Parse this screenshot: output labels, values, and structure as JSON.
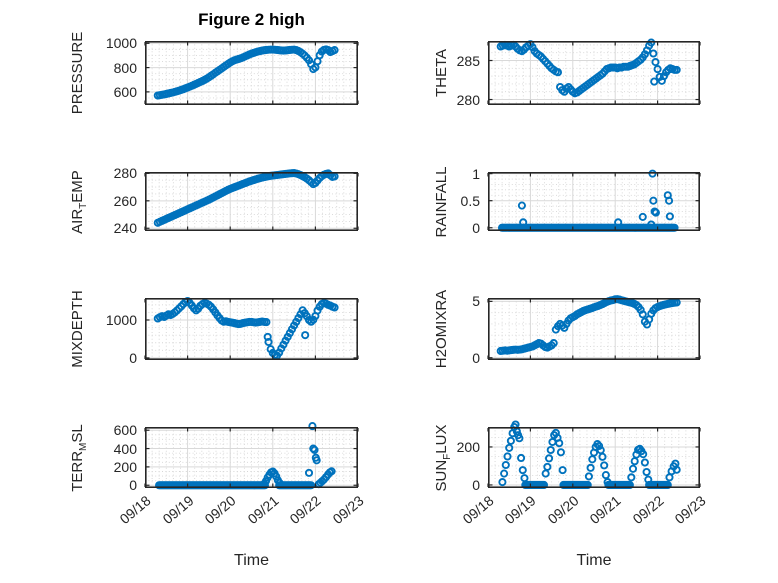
{
  "figure": {
    "title": "Figure 2 high",
    "xlabel": "Time",
    "colors": {
      "marker": "#0072bd",
      "frame": "#262626",
      "grid": "#d9d9d9",
      "minor_grid": "#d6d6d6",
      "text": "#262626",
      "background": "#ffffff"
    }
  },
  "x_axis": {
    "lim": [
      0,
      5
    ],
    "unit": "days since 09/18 00:00",
    "tick_values": [
      0,
      1,
      2,
      3,
      4,
      5
    ],
    "tick_labels": [
      "09/18",
      "09/19",
      "09/20",
      "09/21",
      "09/22",
      "09/23"
    ],
    "minor_divisions_per_day": 6,
    "label": "Time"
  },
  "chart_data": [
    {
      "type": "scatter",
      "name": "PRESSURE",
      "row": 0,
      "col": 0,
      "ylabel": {
        "pre": "PRESSURE",
        "sub": "",
        "post": ""
      },
      "ylim": [
        492,
        1019
      ],
      "yticks": [
        600,
        800,
        1000
      ],
      "ytick_labels": [
        "600",
        "800",
        "1000"
      ],
      "minor_y_step": 50,
      "t0": 0.3,
      "dt": 0.05,
      "values": [
        570,
        573,
        576,
        579,
        583,
        587,
        591,
        595,
        600,
        605,
        610,
        616,
        622,
        629,
        636,
        643,
        650,
        658,
        666,
        674,
        682,
        690,
        699,
        709,
        720,
        732,
        744,
        757,
        769,
        781,
        793,
        806,
        818,
        830,
        842,
        852,
        860,
        866,
        871,
        877,
        884,
        892,
        900,
        908,
        915,
        921,
        927,
        932,
        936,
        940,
        943,
        945,
        947,
        948,
        948,
        947,
        945,
        943,
        941,
        940,
        941,
        943,
        945,
        947,
        948,
        944,
        937,
        927,
        914,
        899,
        881,
        860,
        828,
        788,
        802,
        852,
        902,
        932,
        946,
        950,
        944,
        928,
        936,
        944
      ]
    },
    {
      "type": "scatter",
      "name": "THETA",
      "row": 0,
      "col": 1,
      "ylabel": {
        "pre": "THETA",
        "sub": "",
        "post": ""
      },
      "ylim": [
        279.3,
        287.5
      ],
      "yticks": [
        280,
        285
      ],
      "ytick_labels": [
        "280",
        "285"
      ],
      "minor_y_step": 1,
      "t0": 0.3,
      "dt": 0.05,
      "values": [
        286.8,
        286.9,
        287.0,
        286.9,
        286.8,
        286.9,
        287.0,
        286.8,
        286.5,
        286.3,
        286.2,
        286.4,
        286.7,
        286.9,
        287.1,
        286.7,
        286.2,
        285.9,
        285.7,
        285.5,
        285.2,
        284.9,
        284.6,
        284.3,
        284.0,
        283.8,
        283.6,
        283.5,
        281.6,
        281.2,
        281.0,
        281.4,
        281.6,
        281.3,
        281.0,
        280.8,
        280.9,
        281.1,
        281.3,
        281.5,
        281.7,
        281.9,
        282.1,
        282.3,
        282.5,
        282.7,
        282.9,
        283.1,
        283.3,
        283.6,
        283.9,
        284.0,
        284.1,
        284.1,
        284.1,
        284.0,
        284.1,
        284.1,
        284.2,
        284.2,
        284.2,
        284.3,
        284.4,
        284.5,
        284.7,
        284.9,
        285.1,
        285.4,
        285.8,
        286.3,
        286.9,
        287.3,
        285.9,
        284.8,
        283.9,
        282.9,
        282.4,
        283.0,
        283.5,
        283.8,
        284.0,
        283.9,
        283.8,
        283.8
      ],
      "points": [
        [
          3.92,
          282.3
        ]
      ]
    },
    {
      "type": "scatter",
      "name": "AIR_TEMP",
      "row": 1,
      "col": 0,
      "ylabel": {
        "pre": "AIR",
        "sub": "T",
        "post": "EMP"
      },
      "ylim": [
        238,
        281
      ],
      "yticks": [
        240,
        260,
        280
      ],
      "ytick_labels": [
        "240",
        "260",
        "280"
      ],
      "minor_y_step": 5,
      "t0": 0.3,
      "dt": 0.05,
      "values": [
        244.0,
        244.7,
        245.4,
        246.1,
        246.8,
        247.5,
        248.2,
        248.9,
        249.6,
        250.3,
        251.0,
        251.7,
        252.4,
        253.1,
        253.8,
        254.5,
        255.2,
        255.9,
        256.6,
        257.3,
        258.0,
        258.7,
        259.4,
        260.1,
        260.8,
        261.6,
        262.4,
        263.2,
        264.0,
        264.8,
        265.6,
        266.4,
        267.2,
        268.0,
        268.7,
        269.3,
        269.9,
        270.5,
        271.1,
        271.7,
        272.3,
        272.9,
        273.5,
        274.1,
        274.6,
        275.1,
        275.6,
        276.1,
        276.5,
        276.9,
        277.3,
        277.6,
        277.9,
        278.2,
        278.4,
        278.6,
        278.8,
        279.0,
        279.2,
        279.4,
        279.6,
        279.8,
        280.0,
        280.1,
        280.2,
        279.9,
        279.4,
        278.8,
        278.0,
        277.2,
        276.2,
        275.0,
        273.6,
        272.2,
        273.0,
        274.8,
        276.6,
        278.0,
        279.0,
        279.6,
        280.0,
        278.6,
        277.4,
        277.8
      ]
    },
    {
      "type": "scatter",
      "name": "RAINFALL",
      "row": 1,
      "col": 1,
      "ylabel": {
        "pre": "RAINFALL",
        "sub": "",
        "post": ""
      },
      "ylim": [
        -0.06,
        1.03
      ],
      "yticks": [
        0,
        0.5,
        1
      ],
      "ytick_labels": [
        "0",
        "0.5",
        "1"
      ],
      "minor_y_step": 0.1,
      "points": [
        [
          0.8,
          0.41
        ],
        [
          0.83,
          0.1
        ],
        [
          3.07,
          0.1
        ],
        [
          3.65,
          0.2
        ],
        [
          3.85,
          0.06
        ],
        [
          3.88,
          1.0
        ],
        [
          3.9,
          0.5
        ],
        [
          3.93,
          0.3
        ],
        [
          3.96,
          0.28
        ],
        [
          4.24,
          0.6
        ],
        [
          4.27,
          0.5
        ],
        [
          4.29,
          0.21
        ]
      ],
      "zero_runs": [
        [
          0.33,
          4.42
        ]
      ]
    },
    {
      "type": "scatter",
      "name": "MIXDEPTH",
      "row": 2,
      "col": 0,
      "ylabel": {
        "pre": "MIXDEPTH",
        "sub": "",
        "post": ""
      },
      "ylim": [
        -55,
        1580
      ],
      "yticks": [
        0,
        1000
      ],
      "ytick_labels": [
        "0",
        "1000"
      ],
      "minor_y_step": 200,
      "t0": 0.3,
      "dt": 0.05,
      "values": [
        1040,
        1075,
        1100,
        1080,
        1115,
        1150,
        1130,
        1160,
        1200,
        1250,
        1305,
        1360,
        1420,
        1475,
        1500,
        1450,
        1380,
        1305,
        1255,
        1300,
        1375,
        1420,
        1450,
        1430,
        1400,
        1350,
        1280,
        1200,
        1120,
        1050,
        985,
        955,
        965,
        950,
        940,
        930,
        918,
        902,
        892,
        900,
        918,
        930,
        940,
        950,
        948,
        940,
        932,
        940,
        950,
        958,
        950,
        945,
        420,
        230,
        130,
        80,
        60,
        140,
        250,
        350,
        455,
        555,
        655,
        755,
        855,
        950,
        1050,
        1150,
        1255,
        1180,
        1100,
        1000,
        955,
        1005,
        1105,
        1250,
        1350,
        1420,
        1450,
        1430,
        1400,
        1380,
        1350,
        1330
      ],
      "points": [
        [
          2.88,
          555
        ],
        [
          3.76,
          600
        ]
      ]
    },
    {
      "type": "scatter",
      "name": "H2OMIXRA",
      "row": 2,
      "col": 1,
      "ylabel": {
        "pre": "H2OMIXRA",
        "sub": "",
        "post": ""
      },
      "ylim": [
        -0.2,
        5.3
      ],
      "yticks": [
        0,
        5
      ],
      "ytick_labels": [
        "0",
        "5"
      ],
      "minor_y_step": 1,
      "t0": 0.3,
      "dt": 0.05,
      "values": [
        0.6,
        0.62,
        0.65,
        0.63,
        0.65,
        0.68,
        0.7,
        0.72,
        0.7,
        0.72,
        0.75,
        0.8,
        0.85,
        0.9,
        0.95,
        1.0,
        1.1,
        1.2,
        1.3,
        1.25,
        1.1,
        0.95,
        0.9,
        1.0,
        1.1,
        1.3,
        2.5,
        2.8,
        3.0,
        2.85,
        2.65,
        3.0,
        3.3,
        3.5,
        3.6,
        3.7,
        3.85,
        3.95,
        4.05,
        4.15,
        4.22,
        4.28,
        4.34,
        4.4,
        4.48,
        4.54,
        4.6,
        4.68,
        4.76,
        4.85,
        4.95,
        5.02,
        5.08,
        5.12,
        5.18,
        5.2,
        5.16,
        5.1,
        5.05,
        5.0,
        4.95,
        4.9,
        4.85,
        4.78,
        4.68,
        4.5,
        4.25,
        3.85,
        3.2,
        2.95,
        3.4,
        3.9,
        4.2,
        4.4,
        4.5,
        4.58,
        4.64,
        4.7,
        4.74,
        4.78,
        4.82,
        4.85,
        4.88,
        4.9
      ]
    },
    {
      "type": "scatter",
      "name": "TERR_MSL",
      "row": 3,
      "col": 0,
      "ylabel": {
        "pre": "TERR",
        "sub": "M",
        "post": "SL"
      },
      "ylim": [
        -30,
        635
      ],
      "yticks": [
        0,
        200,
        400,
        600
      ],
      "ytick_labels": [
        "0",
        "200",
        "400",
        "600"
      ],
      "minor_y_step": 50,
      "points": [
        [
          2.8,
          15
        ],
        [
          2.84,
          45
        ],
        [
          2.88,
          85
        ],
        [
          2.92,
          115
        ],
        [
          2.96,
          140
        ],
        [
          3.0,
          150
        ],
        [
          3.04,
          130
        ],
        [
          3.08,
          95
        ],
        [
          3.12,
          55
        ],
        [
          3.16,
          25
        ],
        [
          3.85,
          135
        ],
        [
          3.93,
          645
        ],
        [
          3.95,
          400
        ],
        [
          3.98,
          385
        ],
        [
          4.01,
          300
        ],
        [
          4.03,
          272
        ],
        [
          4.08,
          12
        ],
        [
          4.12,
          28
        ],
        [
          4.16,
          45
        ],
        [
          4.2,
          62
        ],
        [
          4.25,
          88
        ],
        [
          4.3,
          118
        ],
        [
          4.34,
          140
        ],
        [
          4.38,
          152
        ]
      ],
      "zero_runs": [
        [
          0.33,
          2.82
        ],
        [
          3.15,
          3.9
        ]
      ]
    },
    {
      "type": "scatter",
      "name": "SUN_FLUX",
      "row": 3,
      "col": 1,
      "ylabel": {
        "pre": "SUN",
        "sub": "F",
        "post": "LUX"
      },
      "ylim": [
        -16,
        305
      ],
      "yticks": [
        0,
        200
      ],
      "ytick_labels": [
        "0",
        "200"
      ],
      "minor_y_step": 50,
      "points": [
        [
          0.34,
          15
        ],
        [
          0.38,
          60
        ],
        [
          0.42,
          105
        ],
        [
          0.46,
          150
        ],
        [
          0.5,
          195
        ],
        [
          0.54,
          232
        ],
        [
          0.58,
          272
        ],
        [
          0.62,
          305
        ],
        [
          0.65,
          318
        ],
        [
          0.68,
          282
        ],
        [
          0.71,
          262
        ],
        [
          0.74,
          246
        ],
        [
          0.78,
          142
        ],
        [
          0.82,
          78
        ],
        [
          0.86,
          36
        ],
        [
          1.36,
          60
        ],
        [
          1.4,
          95
        ],
        [
          1.44,
          140
        ],
        [
          1.48,
          184
        ],
        [
          1.52,
          226
        ],
        [
          1.56,
          262
        ],
        [
          1.6,
          274
        ],
        [
          1.64,
          248
        ],
        [
          1.68,
          220
        ],
        [
          1.72,
          172
        ],
        [
          1.76,
          78
        ],
        [
          2.38,
          45
        ],
        [
          2.42,
          90
        ],
        [
          2.46,
          135
        ],
        [
          2.5,
          170
        ],
        [
          2.54,
          200
        ],
        [
          2.58,
          215
        ],
        [
          2.62,
          205
        ],
        [
          2.66,
          183
        ],
        [
          2.7,
          148
        ],
        [
          2.74,
          103
        ],
        [
          2.78,
          52
        ],
        [
          2.82,
          15
        ],
        [
          3.38,
          40
        ],
        [
          3.42,
          85
        ],
        [
          3.46,
          125
        ],
        [
          3.5,
          160
        ],
        [
          3.54,
          185
        ],
        [
          3.58,
          190
        ],
        [
          3.62,
          178
        ],
        [
          3.66,
          162
        ],
        [
          3.7,
          118
        ],
        [
          3.74,
          68
        ],
        [
          3.78,
          28
        ],
        [
          4.28,
          40
        ],
        [
          4.33,
          72
        ],
        [
          4.38,
          98
        ],
        [
          4.42,
          112
        ],
        [
          4.45,
          80
        ]
      ],
      "zero_runs": [
        [
          0.88,
          1.34
        ],
        [
          1.78,
          2.36
        ],
        [
          2.84,
          3.36
        ],
        [
          3.8,
          4.26
        ]
      ]
    }
  ]
}
